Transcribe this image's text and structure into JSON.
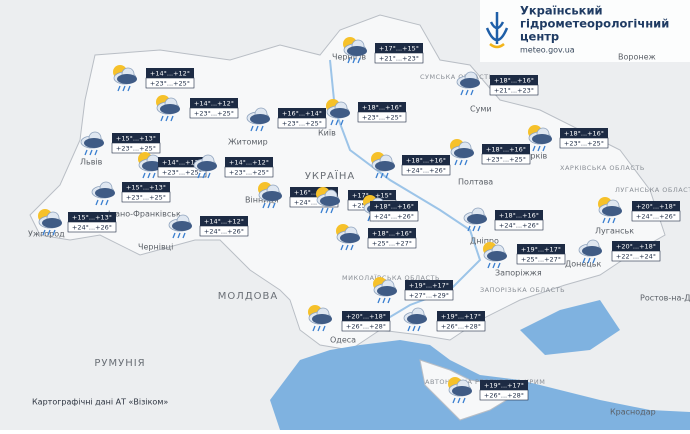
{
  "header": {
    "title_lines": [
      "Український",
      "гідрометеорологічний",
      "центр"
    ],
    "url": "meteo.gov.ua"
  },
  "map": {
    "countries": [
      "УКРАЇНА",
      "МОЛДОВА",
      "РУМУНІЯ"
    ],
    "places": [
      "Чернігів",
      "Суми",
      "Київ",
      "Житомир",
      "Львів",
      "Полтава",
      "Харків",
      "Луганськ",
      "Донецьк",
      "Дніпро",
      "Запоріжжя",
      "Одеса",
      "Вінниця",
      "Чернівці",
      "Ужгород",
      "Івано-Франківськ",
      "Воронеж",
      "Ростов-на-Дону",
      "Краснодар"
    ],
    "regions": [
      "СУМСЬКА ОБЛАСТЬ",
      "ХАРКІВСЬКА ОБЛАСТЬ",
      "ЛУГАНСЬКА ОБЛАСТЬ",
      "ЗАПОРІЗЬКА ОБЛАСТЬ",
      "МИКОЛАЇВСЬКА ОБЛАСТЬ",
      "АВТОНОМНА РЕСПУБЛІКА КРИМ"
    ],
    "attribution": "Картографічні дані АТ «Візіком»"
  },
  "forecasts": [
    {
      "night": "+17°...+15°",
      "day": "+21°...+23°"
    },
    {
      "night": "+18°...+16°",
      "day": "+21°...+23°"
    },
    {
      "night": "+14°...+12°",
      "day": "+23°...+25°"
    },
    {
      "night": "+14°...+12°",
      "day": "+23°...+25°"
    },
    {
      "night": "+16°...+14°",
      "day": "+23°...+25°"
    },
    {
      "night": "+18°...+16°",
      "day": "+23°...+25°"
    },
    {
      "night": "+18°...+16°",
      "day": "+23°...+25°"
    },
    {
      "night": "+15°...+13°",
      "day": "+23°...+25°"
    },
    {
      "night": "+18°...+16°",
      "day": "+23°...+25°"
    },
    {
      "night": "+14°...+12°",
      "day": "+23°...+25°"
    },
    {
      "night": "+14°...+12°",
      "day": "+23°...+25°"
    },
    {
      "night": "+18°...+16°",
      "day": "+24°...+26°"
    },
    {
      "night": "+16°...+14°",
      "day": "+24°...+26°"
    },
    {
      "night": "+15°...+13°",
      "day": "+23°...+25°"
    },
    {
      "night": "+17°...+15°",
      "day": "+25°...+27°"
    },
    {
      "night": "+18°...+16°",
      "day": "+24°...+26°"
    },
    {
      "night": "+18°...+16°",
      "day": "+24°...+26°"
    },
    {
      "night": "+20°...+18°",
      "day": "+24°...+26°"
    },
    {
      "night": "+15°...+13°",
      "day": "+24°...+26°"
    },
    {
      "night": "+14°...+12°",
      "day": "+24°...+26°"
    },
    {
      "night": "+18°...+16°",
      "day": "+25°...+27°"
    },
    {
      "night": "+19°...+17°",
      "day": "+25°...+27°"
    },
    {
      "night": "+20°...+18°",
      "day": "+22°...+24°"
    },
    {
      "night": "+19°...+17°",
      "day": "+27°...+29°"
    },
    {
      "night": "+20°...+18°",
      "day": "+26°...+28°"
    },
    {
      "night": "+19°...+17°",
      "day": "+26°...+28°"
    },
    {
      "night": "+19°...+17°",
      "day": "+26°...+28°"
    }
  ]
}
